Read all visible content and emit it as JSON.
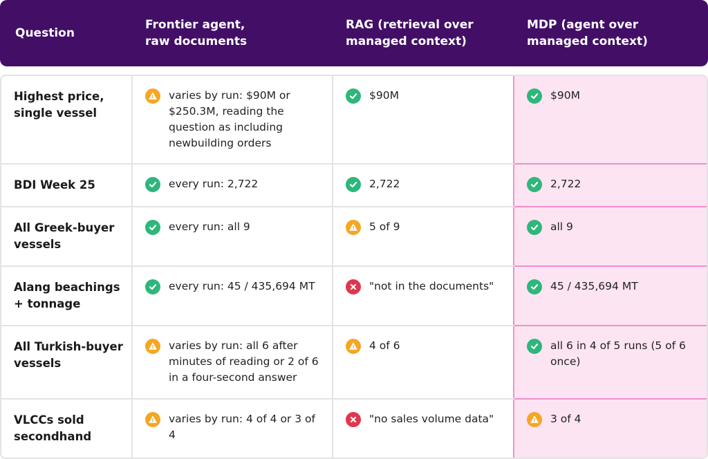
{
  "colors": {
    "header_bg": "#420e66",
    "ok": "#2fb67c",
    "warn": "#f5a623",
    "fail": "#e0364f",
    "highlight_bg": "#fce4f2",
    "highlight_border": "#f08fcb"
  },
  "header": {
    "question": "Question",
    "frontier": "Frontier agent,\nraw documents",
    "rag": "RAG (retrieval over\nmanaged context)",
    "mdp": "MDP (agent over\nmanaged context)"
  },
  "rows": [
    {
      "question": "Highest price, single vessel",
      "frontier": {
        "status": "warning-icon",
        "text": "varies by run: $90M or $250.3M, reading the question as including newbuilding orders"
      },
      "rag": {
        "status": "check-icon",
        "text": "$90M"
      },
      "mdp": {
        "status": "check-icon",
        "text": "$90M"
      }
    },
    {
      "question": "BDI Week 25",
      "frontier": {
        "status": "check-icon",
        "text": "every run: 2,722"
      },
      "rag": {
        "status": "check-icon",
        "text": "2,722"
      },
      "mdp": {
        "status": "check-icon",
        "text": "2,722"
      }
    },
    {
      "question": "All Greek-buyer vessels",
      "frontier": {
        "status": "check-icon",
        "text": "every run: all 9"
      },
      "rag": {
        "status": "warning-icon",
        "text": "5 of 9"
      },
      "mdp": {
        "status": "check-icon",
        "text": "all 9"
      }
    },
    {
      "question": "Alang beachings + tonnage",
      "frontier": {
        "status": "check-icon",
        "text": "every run: 45 / 435,694 MT"
      },
      "rag": {
        "status": "cross-icon",
        "text": "\"not in the documents\""
      },
      "mdp": {
        "status": "check-icon",
        "text": "45 / 435,694 MT"
      }
    },
    {
      "question": "All Turkish-buyer vessels",
      "frontier": {
        "status": "warning-icon",
        "text": "varies by run: all 6 after minutes of reading or 2 of 6 in a four-second answer"
      },
      "rag": {
        "status": "warning-icon",
        "text": "4 of 6"
      },
      "mdp": {
        "status": "check-icon",
        "text": "all 6 in 4 of 5 runs (5 of 6 once)"
      }
    },
    {
      "question": "VLCCs sold secondhand",
      "frontier": {
        "status": "warning-icon",
        "text": "varies by run: 4 of 4 or 3 of 4"
      },
      "rag": {
        "status": "cross-icon",
        "text": "\"no sales volume data\""
      },
      "mdp": {
        "status": "warning-icon",
        "text": "3 of 4"
      }
    }
  ]
}
